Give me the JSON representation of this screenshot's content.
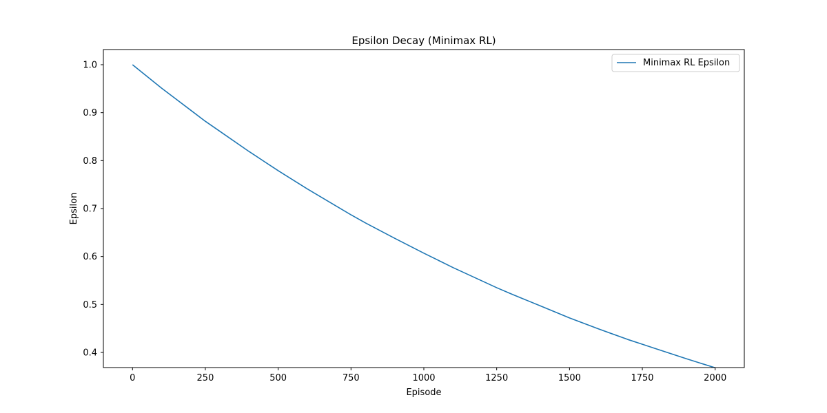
{
  "chart_data": {
    "type": "line",
    "title": "Epsilon Decay (Minimax RL)",
    "xlabel": "Episode",
    "ylabel": "Epsilon",
    "xlim": [
      -100,
      2100
    ],
    "ylim": [
      0.3684,
      1.0316
    ],
    "x_ticks": [
      0,
      250,
      500,
      750,
      1000,
      1250,
      1500,
      1750,
      2000
    ],
    "x_tick_labels": [
      "0",
      "250",
      "500",
      "750",
      "1000",
      "1250",
      "1500",
      "1750",
      "2000"
    ],
    "y_ticks": [
      0.4,
      0.5,
      0.6,
      0.7,
      0.8,
      0.9,
      1.0
    ],
    "y_tick_labels": [
      "0.4",
      "0.5",
      "0.6",
      "0.7",
      "0.8",
      "0.9",
      "1.0"
    ],
    "grid": false,
    "legend_position": "top-right",
    "series": [
      {
        "name": "Minimax RL Epsilon",
        "color": "#1f77b4",
        "x": [
          0,
          100,
          200,
          250,
          300,
          400,
          500,
          600,
          700,
          750,
          800,
          900,
          1000,
          1100,
          1200,
          1250,
          1300,
          1400,
          1500,
          1600,
          1700,
          1750,
          1800,
          1900,
          2000
        ],
        "y": [
          1.0,
          0.951,
          0.905,
          0.882,
          0.861,
          0.819,
          0.779,
          0.741,
          0.705,
          0.687,
          0.67,
          0.638,
          0.607,
          0.577,
          0.549,
          0.535,
          0.522,
          0.497,
          0.472,
          0.449,
          0.427,
          0.417,
          0.407,
          0.387,
          0.368
        ]
      }
    ]
  }
}
